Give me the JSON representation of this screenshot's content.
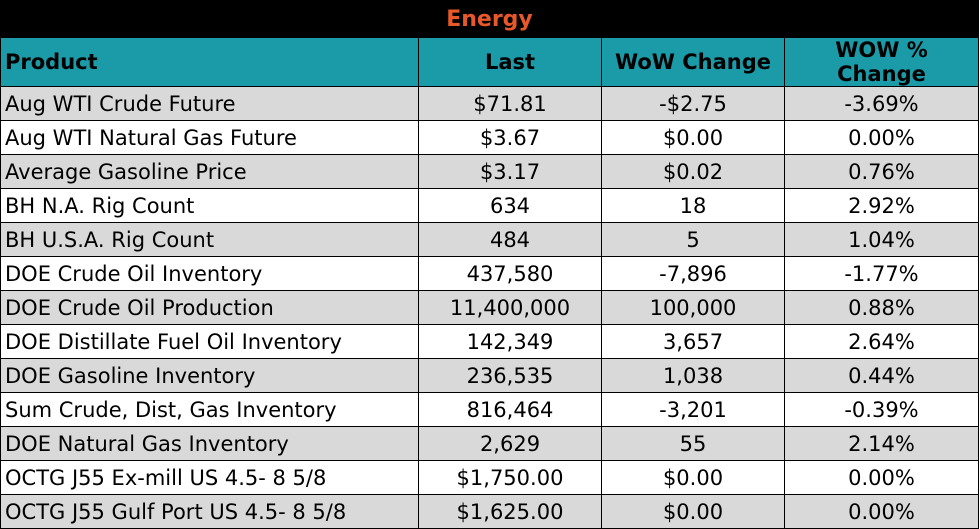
{
  "title": "Energy",
  "columns": [
    "Product",
    "Last",
    "WoW Change",
    "WOW % Change"
  ],
  "rows": [
    {
      "product": "Aug WTI Crude Future",
      "last": "$71.81",
      "wow_change": "-$2.75",
      "wow_pct": "-3.69%"
    },
    {
      "product": "Aug WTI Natural Gas Future",
      "last": "$3.67",
      "wow_change": "$0.00",
      "wow_pct": "0.00%"
    },
    {
      "product": "Average Gasoline Price",
      "last": "$3.17",
      "wow_change": "$0.02",
      "wow_pct": "0.76%"
    },
    {
      "product": "BH N.A. Rig Count",
      "last": "634",
      "wow_change": "18",
      "wow_pct": "2.92%"
    },
    {
      "product": "BH U.S.A. Rig Count",
      "last": "484",
      "wow_change": "5",
      "wow_pct": "1.04%"
    },
    {
      "product": "DOE Crude Oil Inventory",
      "last": "437,580",
      "wow_change": "-7,896",
      "wow_pct": "-1.77%"
    },
    {
      "product": "DOE Crude Oil Production",
      "last": "11,400,000",
      "wow_change": "100,000",
      "wow_pct": "0.88%"
    },
    {
      "product": "DOE Distillate Fuel Oil Inventory",
      "last": "142,349",
      "wow_change": "3,657",
      "wow_pct": "2.64%"
    },
    {
      "product": "DOE Gasoline Inventory",
      "last": "236,535",
      "wow_change": "1,038",
      "wow_pct": "0.44%"
    },
    {
      "product": "Sum Crude, Dist, Gas Inventory",
      "last": "816,464",
      "wow_change": "-3,201",
      "wow_pct": "-0.39%"
    },
    {
      "product": "DOE Natural Gas Inventory",
      "last": "2,629",
      "wow_change": "55",
      "wow_pct": "2.14%"
    },
    {
      "product": "OCTG J55 Ex-mill US 4.5- 8 5/8",
      "last": "$1,750.00",
      "wow_change": "$0.00",
      "wow_pct": "0.00%"
    },
    {
      "product": "OCTG J55 Gulf Port US 4.5- 8 5/8",
      "last": "$1,625.00",
      "wow_change": "$0.00",
      "wow_pct": "0.00%"
    }
  ],
  "colors": {
    "title_bg": "#000000",
    "title_text": "#e8582a",
    "header_bg": "#1b9aa8",
    "row_shade": "#d9d9d9"
  }
}
